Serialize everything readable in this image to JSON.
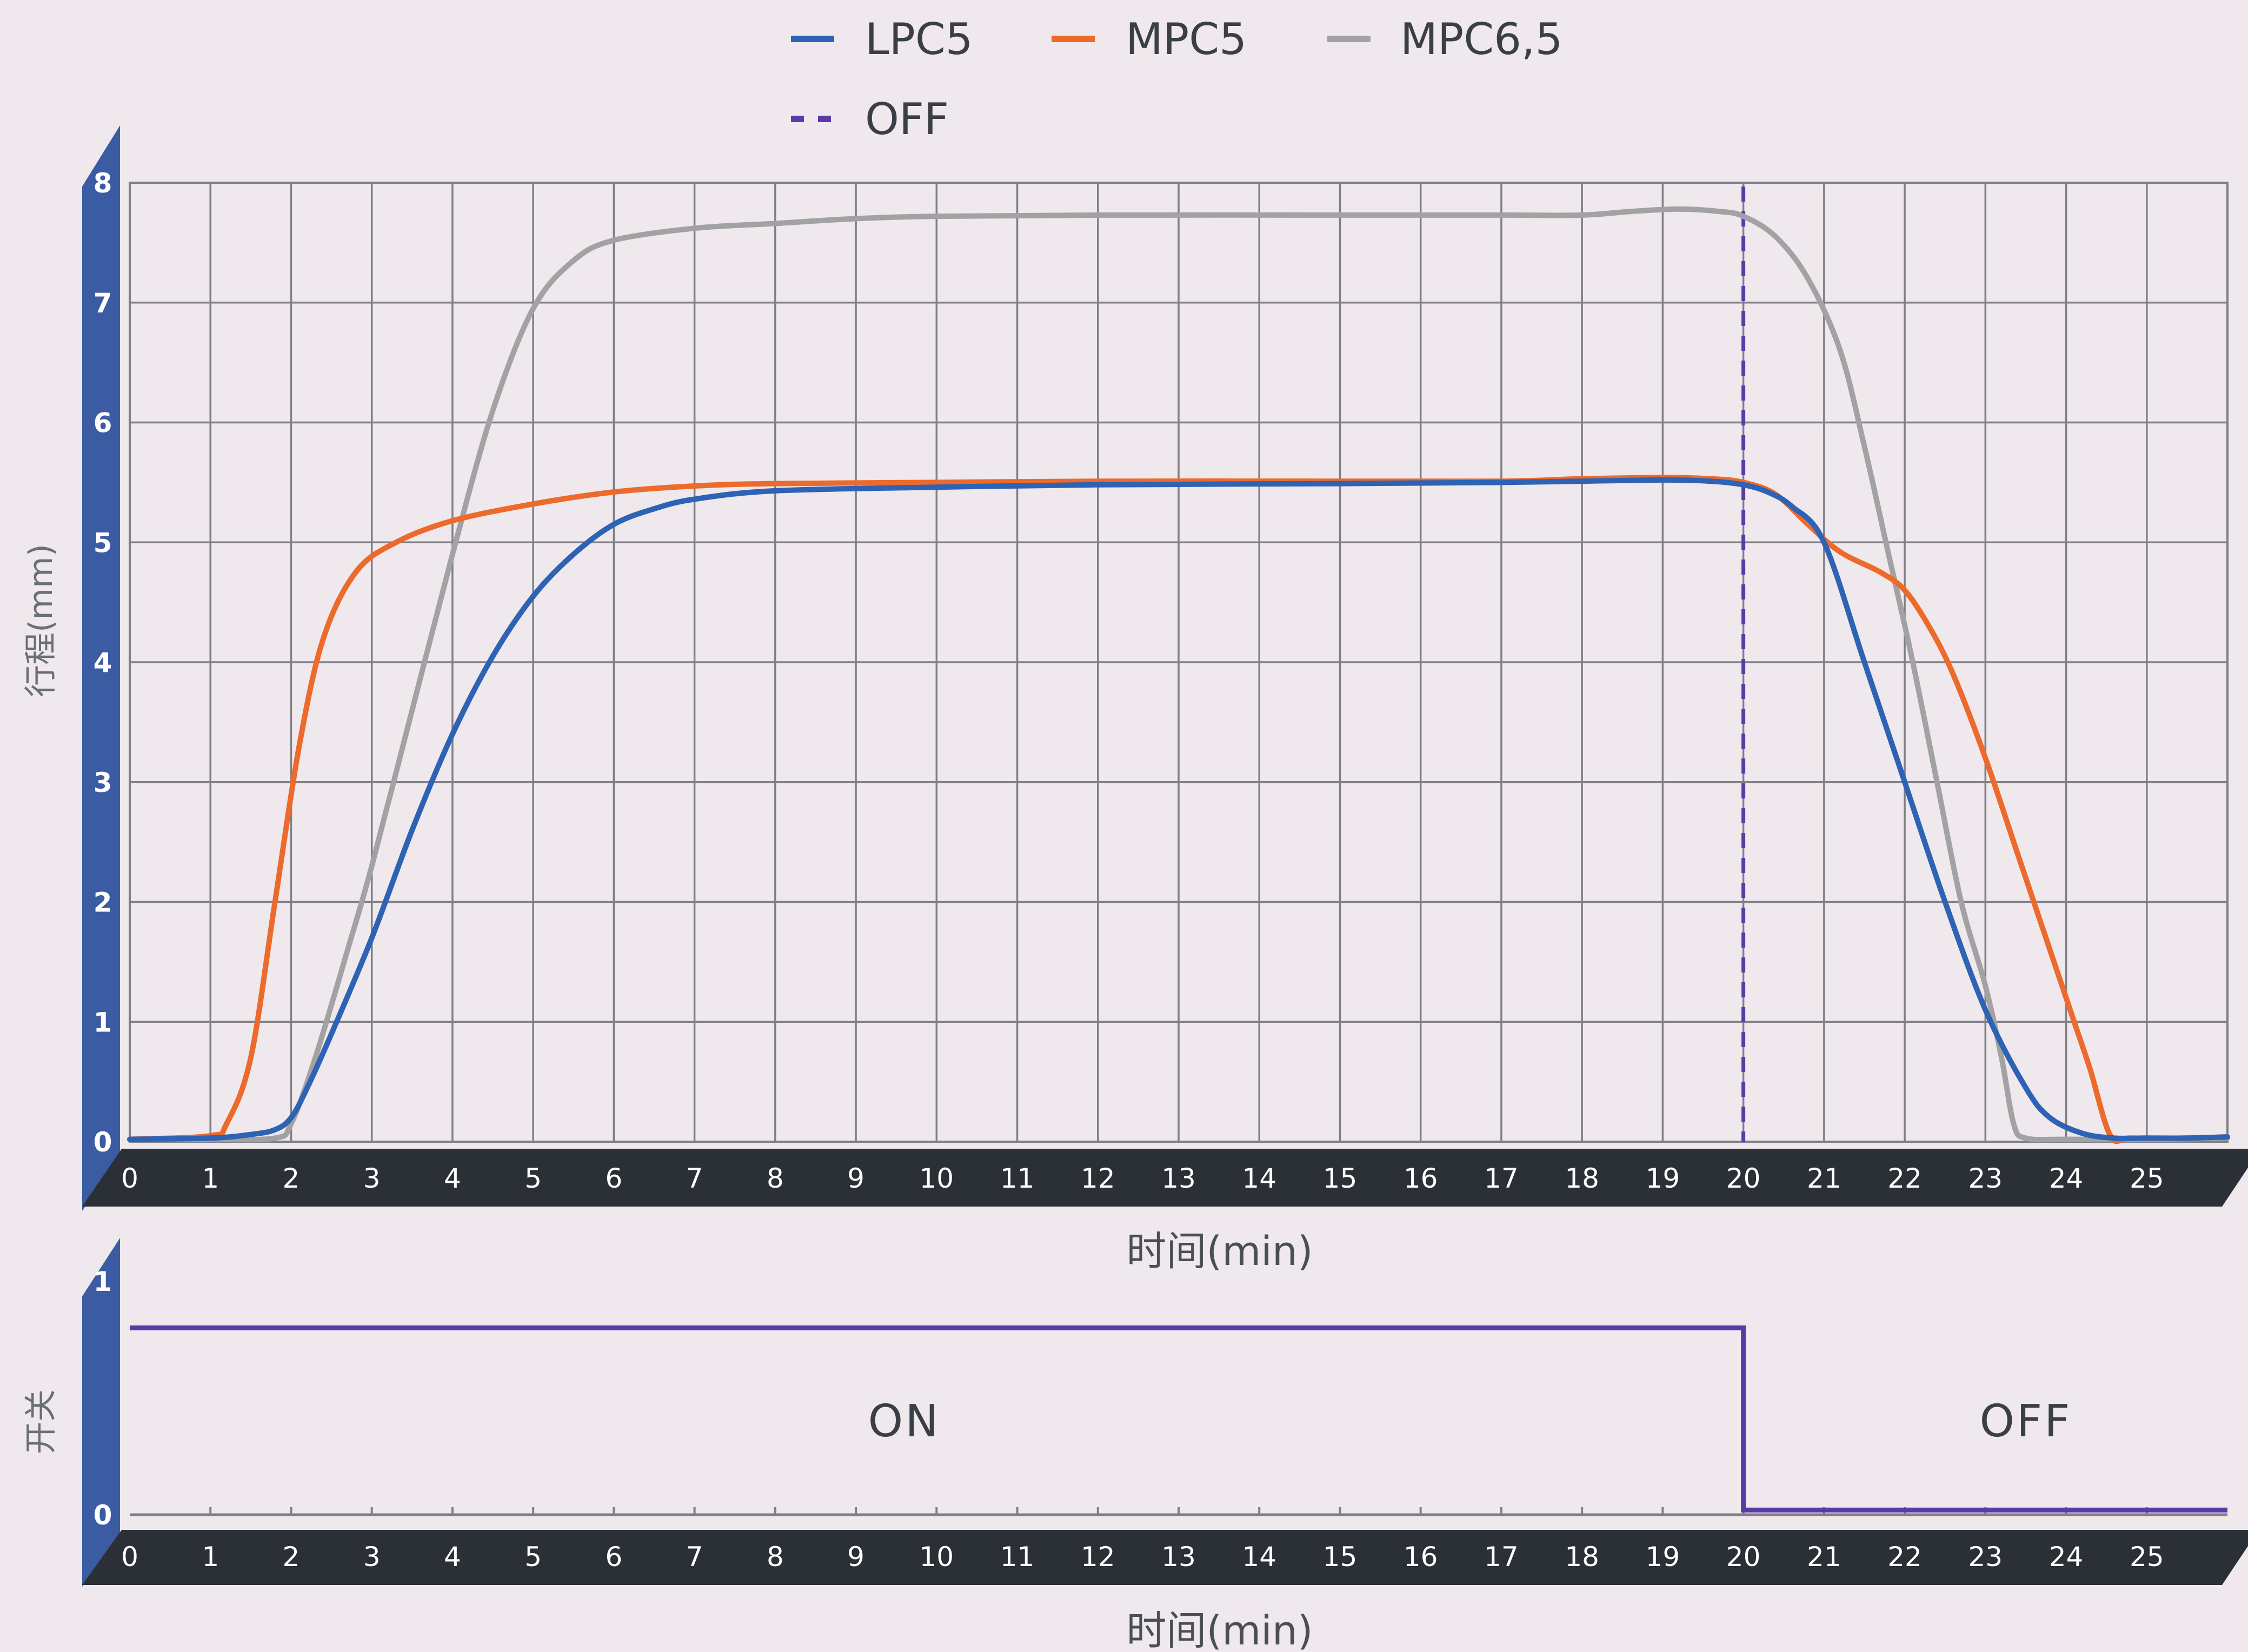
{
  "colors": {
    "background": "#efe8ec",
    "grid": "#7e8086",
    "band": "#2b2f36",
    "panel": "#3b5ba3",
    "switch_line": "#5a3aa8"
  },
  "legend": [
    {
      "label": "LPC5",
      "style": "solid",
      "color": "#2e62b5"
    },
    {
      "label": "MPC5",
      "style": "solid",
      "color": "#ec6a2c"
    },
    {
      "label": "MPC6,5",
      "style": "solid",
      "color": "#a2a2a4"
    },
    {
      "label": "OFF",
      "style": "dashed",
      "color": "#5a3aa8"
    }
  ],
  "chart_data": [
    {
      "type": "line",
      "xlabel": "时间(min)",
      "ylabel": "行程(mm)",
      "xlim": [
        0,
        26
      ],
      "ylim": [
        0,
        8
      ],
      "x_ticks": [
        0,
        1,
        2,
        3,
        4,
        5,
        6,
        7,
        8,
        9,
        10,
        11,
        12,
        13,
        14,
        15,
        16,
        17,
        18,
        19,
        20,
        21,
        22,
        23,
        24,
        25
      ],
      "y_ticks": [
        0,
        1,
        2,
        3,
        4,
        5,
        6,
        7,
        8
      ],
      "grid": true,
      "legend_position": "top-center",
      "off_marker_x": 20,
      "series": [
        {
          "name": "LPC5",
          "color": "#2e62b5",
          "points": [
            [
              0,
              0.02
            ],
            [
              1,
              0.03
            ],
            [
              1.5,
              0.06
            ],
            [
              1.8,
              0.1
            ],
            [
              2,
              0.2
            ],
            [
              2.2,
              0.45
            ],
            [
              2.5,
              0.9
            ],
            [
              3,
              1.7
            ],
            [
              3.5,
              2.6
            ],
            [
              4,
              3.4
            ],
            [
              4.5,
              4.05
            ],
            [
              5,
              4.55
            ],
            [
              5.5,
              4.9
            ],
            [
              6,
              5.15
            ],
            [
              6.5,
              5.28
            ],
            [
              7,
              5.36
            ],
            [
              8,
              5.43
            ],
            [
              10,
              5.46
            ],
            [
              12,
              5.48
            ],
            [
              15,
              5.49
            ],
            [
              17,
              5.5
            ],
            [
              18,
              5.51
            ],
            [
              19,
              5.52
            ],
            [
              19.6,
              5.51
            ],
            [
              20,
              5.48
            ],
            [
              20.3,
              5.42
            ],
            [
              20.6,
              5.3
            ],
            [
              21,
              5.0
            ],
            [
              21.5,
              4.0
            ],
            [
              22,
              3.0
            ],
            [
              22.5,
              2.0
            ],
            [
              23,
              1.1
            ],
            [
              23.5,
              0.45
            ],
            [
              23.8,
              0.2
            ],
            [
              24.2,
              0.07
            ],
            [
              24.6,
              0.03
            ],
            [
              25,
              0.03
            ],
            [
              25.5,
              0.03
            ],
            [
              26,
              0.04
            ]
          ]
        },
        {
          "name": "MPC5",
          "color": "#ec6a2c",
          "points": [
            [
              0,
              0.02
            ],
            [
              1,
              0.05
            ],
            [
              1.2,
              0.15
            ],
            [
              1.5,
              0.7
            ],
            [
              1.8,
              2.0
            ],
            [
              2.1,
              3.3
            ],
            [
              2.4,
              4.2
            ],
            [
              2.8,
              4.75
            ],
            [
              3.3,
              5.0
            ],
            [
              4,
              5.18
            ],
            [
              5,
              5.32
            ],
            [
              6,
              5.42
            ],
            [
              7,
              5.47
            ],
            [
              8,
              5.49
            ],
            [
              10,
              5.5
            ],
            [
              12,
              5.51
            ],
            [
              15,
              5.51
            ],
            [
              17,
              5.51
            ],
            [
              18,
              5.53
            ],
            [
              19,
              5.54
            ],
            [
              19.6,
              5.53
            ],
            [
              20,
              5.5
            ],
            [
              20.4,
              5.4
            ],
            [
              20.8,
              5.15
            ],
            [
              21.2,
              4.92
            ],
            [
              21.7,
              4.75
            ],
            [
              22,
              4.6
            ],
            [
              22.3,
              4.3
            ],
            [
              22.6,
              3.9
            ],
            [
              23,
              3.2
            ],
            [
              23.4,
              2.4
            ],
            [
              23.8,
              1.6
            ],
            [
              24.1,
              1.0
            ],
            [
              24.3,
              0.6
            ],
            [
              24.55,
              0.05
            ],
            [
              24.8,
              0.03
            ],
            [
              25.5,
              0.03
            ],
            [
              26,
              0.04
            ]
          ]
        },
        {
          "name": "MPC6,5",
          "color": "#a2a2a4",
          "points": [
            [
              0,
              0.02
            ],
            [
              1,
              0.02
            ],
            [
              1.8,
              0.03
            ],
            [
              2,
              0.15
            ],
            [
              2.3,
              0.7
            ],
            [
              2.7,
              1.6
            ],
            [
              3,
              2.3
            ],
            [
              3.5,
              3.6
            ],
            [
              4,
              4.9
            ],
            [
              4.5,
              6.1
            ],
            [
              5,
              6.95
            ],
            [
              5.5,
              7.35
            ],
            [
              6,
              7.52
            ],
            [
              7,
              7.62
            ],
            [
              8,
              7.66
            ],
            [
              9,
              7.7
            ],
            [
              10,
              7.72
            ],
            [
              12,
              7.73
            ],
            [
              15,
              7.73
            ],
            [
              17,
              7.73
            ],
            [
              18,
              7.73
            ],
            [
              18.6,
              7.76
            ],
            [
              19.2,
              7.78
            ],
            [
              19.7,
              7.76
            ],
            [
              20,
              7.72
            ],
            [
              20.4,
              7.55
            ],
            [
              20.8,
              7.2
            ],
            [
              21.2,
              6.6
            ],
            [
              21.5,
              5.8
            ],
            [
              21.8,
              4.9
            ],
            [
              22.1,
              4.0
            ],
            [
              22.4,
              3.0
            ],
            [
              22.7,
              2.0
            ],
            [
              23,
              1.3
            ],
            [
              23.2,
              0.7
            ],
            [
              23.35,
              0.15
            ],
            [
              23.5,
              0.03
            ],
            [
              24,
              0.02
            ],
            [
              25,
              0.02
            ],
            [
              26,
              0.03
            ]
          ]
        }
      ]
    },
    {
      "type": "line",
      "xlabel": "时间(min)",
      "ylabel": "开关",
      "xlim": [
        0,
        26
      ],
      "ylim": [
        0,
        1
      ],
      "x_ticks": [
        0,
        1,
        2,
        3,
        4,
        5,
        6,
        7,
        8,
        9,
        10,
        11,
        12,
        13,
        14,
        15,
        16,
        17,
        18,
        19,
        20,
        21,
        22,
        23,
        24,
        25
      ],
      "y_ticks": [
        0,
        1
      ],
      "series": [
        {
          "color": "#5a3aa8",
          "points": [
            [
              0,
              0.8
            ],
            [
              20,
              0.8
            ],
            [
              20,
              0.02
            ],
            [
              26,
              0.02
            ]
          ]
        }
      ],
      "annotations": [
        {
          "text": "ON",
          "x": 9.6,
          "y": 0.4
        },
        {
          "text": "OFF",
          "x": 23.5,
          "y": 0.4
        }
      ]
    }
  ]
}
